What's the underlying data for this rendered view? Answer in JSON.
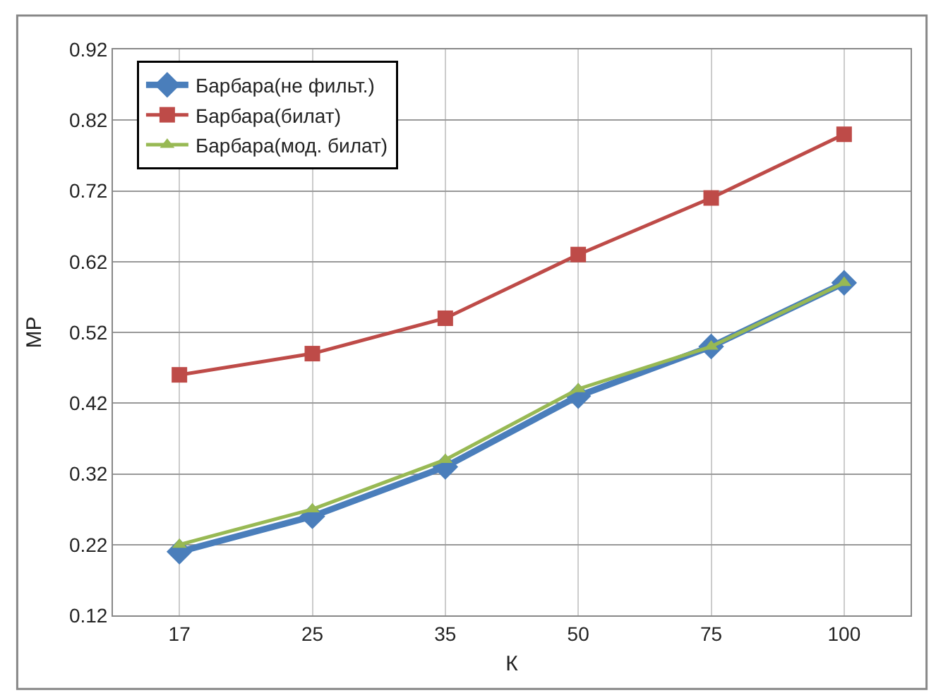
{
  "chart_data": {
    "type": "line",
    "xlabel": "К",
    "ylabel": "МР",
    "categories": [
      "17",
      "25",
      "35",
      "50",
      "75",
      "100"
    ],
    "ylim": [
      0.12,
      0.92
    ],
    "yticks": [
      0.12,
      0.22,
      0.32,
      0.42,
      0.52,
      0.62,
      0.72,
      0.82,
      0.92
    ],
    "grid": true,
    "legend": "top left",
    "series": [
      {
        "name": "Барбара(не фильт.)",
        "color": "#4a7ebb",
        "marker": "diamond",
        "values": [
          0.21,
          0.26,
          0.33,
          0.43,
          0.5,
          0.59
        ]
      },
      {
        "name": "Барбара(билат)",
        "color": "#be4b48",
        "marker": "square",
        "values": [
          0.46,
          0.49,
          0.54,
          0.63,
          0.71,
          0.8
        ]
      },
      {
        "name": "Барбара(мод. билат)",
        "color": "#98b954",
        "marker": "triangle",
        "values": [
          0.22,
          0.27,
          0.34,
          0.44,
          0.5,
          0.59
        ]
      }
    ]
  }
}
